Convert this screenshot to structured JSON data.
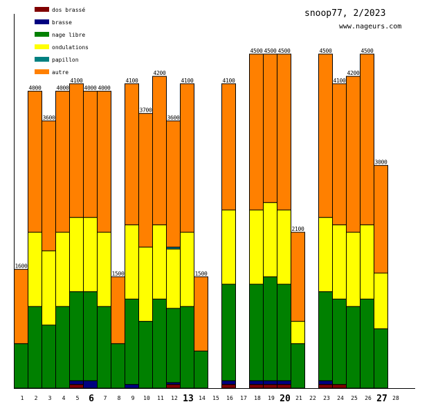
{
  "chart_data": {
    "type": "bar",
    "stacked": true,
    "title": "snoop77, 2/2023",
    "subtitle": "www.nageurs.com",
    "xlabel": "",
    "ylabel": "",
    "ylim": [
      0,
      4500
    ],
    "grid": false,
    "legend_position": "top-left",
    "categories": [
      "1",
      "2",
      "3",
      "4",
      "5",
      "6",
      "7",
      "8",
      "9",
      "10",
      "11",
      "12",
      "13",
      "14",
      "15",
      "16",
      "17",
      "18",
      "19",
      "20",
      "21",
      "22",
      "23",
      "24",
      "25",
      "26",
      "27",
      "28"
    ],
    "bold_categories": [
      "6",
      "13",
      "20",
      "27"
    ],
    "series": [
      {
        "name": "dos brassé",
        "color": "#800000",
        "values": [
          0,
          0,
          0,
          0,
          50,
          0,
          0,
          0,
          0,
          0,
          0,
          50,
          0,
          0,
          0,
          50,
          0,
          50,
          50,
          50,
          0,
          0,
          50,
          50,
          0,
          0,
          0,
          0
        ]
      },
      {
        "name": "brasse",
        "color": "#000080",
        "values": [
          0,
          0,
          0,
          0,
          50,
          100,
          0,
          0,
          50,
          0,
          0,
          25,
          0,
          0,
          0,
          50,
          0,
          50,
          50,
          50,
          0,
          0,
          50,
          0,
          0,
          0,
          0,
          0
        ]
      },
      {
        "name": "nage libre",
        "color": "#008000",
        "values": [
          600,
          1100,
          850,
          1100,
          1200,
          1200,
          1100,
          600,
          1150,
          900,
          1200,
          1000,
          1100,
          500,
          0,
          1300,
          0,
          1300,
          1400,
          1300,
          600,
          0,
          1200,
          1150,
          1100,
          1200,
          800,
          0
        ]
      },
      {
        "name": "ondulations",
        "color": "#ffff00",
        "values": [
          0,
          1000,
          1000,
          1000,
          1000,
          1000,
          1000,
          0,
          1000,
          1000,
          1000,
          800,
          1000,
          0,
          0,
          1000,
          0,
          1000,
          1000,
          1000,
          300,
          0,
          1000,
          1000,
          1000,
          1000,
          750,
          0
        ]
      },
      {
        "name": "papillon",
        "color": "#008080",
        "values": [
          0,
          0,
          0,
          0,
          0,
          0,
          0,
          0,
          0,
          0,
          0,
          25,
          0,
          0,
          0,
          0,
          0,
          0,
          0,
          0,
          0,
          0,
          0,
          0,
          0,
          0,
          0,
          0
        ]
      },
      {
        "name": "autre",
        "color": "#ff8000",
        "values": [
          1000,
          1900,
          1750,
          1900,
          1800,
          1700,
          1900,
          900,
          1900,
          1800,
          2000,
          1700,
          2000,
          1000,
          0,
          1700,
          0,
          2100,
          2000,
          2100,
          1200,
          0,
          2200,
          1900,
          2100,
          2300,
          1450,
          0
        ]
      }
    ],
    "totals": [
      "1600",
      "4000",
      "3600",
      "4000",
      "4100",
      "4000",
      "4000",
      "1500",
      "4100",
      "3700",
      "4200",
      "3600",
      "4100",
      "1500",
      "",
      "4100",
      "",
      "4500",
      "4500",
      "4500",
      "2100",
      "",
      "4500",
      "4100",
      "4200",
      "4500",
      "3000",
      ""
    ]
  }
}
